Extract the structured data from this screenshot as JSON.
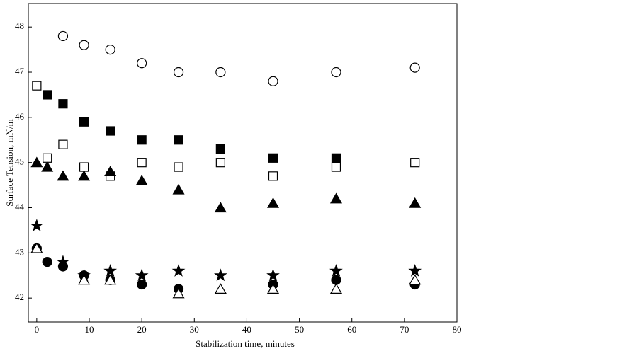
{
  "chart_data": {
    "type": "scatter",
    "xlabel": "Stabilization time, minutes",
    "ylabel": "Surface Tension, mN/m",
    "xlim": [
      -1.6,
      80
    ],
    "xticks": [
      0,
      10,
      20,
      30,
      40,
      50,
      60,
      70,
      80
    ],
    "ylim": [
      41.47,
      48.52
    ],
    "yticks": [
      42,
      43,
      44,
      45,
      46,
      47,
      48
    ],
    "series": [
      {
        "color": "#000000",
        "marker": "circle",
        "filled": false,
        "x": [
          5,
          9,
          14,
          20,
          27,
          35,
          45,
          57,
          72
        ],
        "values": [
          47.8,
          47.6,
          47.5,
          47.2,
          47.0,
          47.0,
          46.8,
          47.0,
          47.1
        ]
      },
      {
        "color": "#000000",
        "marker": "square",
        "filled": true,
        "x": [
          2,
          5,
          9,
          14,
          20,
          27,
          35,
          45,
          57
        ],
        "values": [
          46.5,
          46.3,
          45.9,
          45.7,
          45.5,
          45.5,
          45.3,
          45.1,
          45.1
        ]
      },
      {
        "color": "#000000",
        "marker": "square",
        "filled": false,
        "x": [
          0,
          2,
          5,
          9,
          14,
          20,
          27,
          35,
          45,
          57,
          72
        ],
        "values": [
          46.7,
          45.1,
          45.4,
          44.9,
          44.7,
          45.0,
          44.9,
          45.0,
          44.7,
          44.9,
          45.0
        ]
      },
      {
        "color": "#000000",
        "marker": "triangle",
        "filled": true,
        "x": [
          0,
          2,
          5,
          9,
          14,
          20,
          27,
          35,
          45,
          57,
          72
        ],
        "values": [
          45.0,
          44.9,
          44.7,
          44.7,
          44.8,
          44.6,
          44.4,
          44.0,
          44.1,
          44.2,
          44.1
        ]
      },
      {
        "color": "#000000",
        "marker": "star",
        "filled": true,
        "x": [
          0,
          5,
          9,
          14,
          20,
          27,
          35,
          45,
          57,
          72
        ],
        "values": [
          43.6,
          42.8,
          42.5,
          42.6,
          42.5,
          42.6,
          42.5,
          42.5,
          42.6,
          42.6
        ]
      },
      {
        "color": "#000000",
        "marker": "circle",
        "filled": true,
        "x": [
          0,
          2,
          5,
          9,
          14,
          20,
          27,
          45,
          57,
          72
        ],
        "values": [
          43.1,
          42.8,
          42.7,
          42.5,
          42.4,
          42.3,
          42.2,
          42.3,
          42.4,
          42.3
        ]
      },
      {
        "color": "#000000",
        "marker": "triangle",
        "filled": false,
        "x": [
          0,
          9,
          14,
          27,
          35,
          45,
          57,
          72
        ],
        "values": [
          43.1,
          42.4,
          42.4,
          42.1,
          42.2,
          42.2,
          42.2,
          42.4
        ]
      }
    ]
  }
}
